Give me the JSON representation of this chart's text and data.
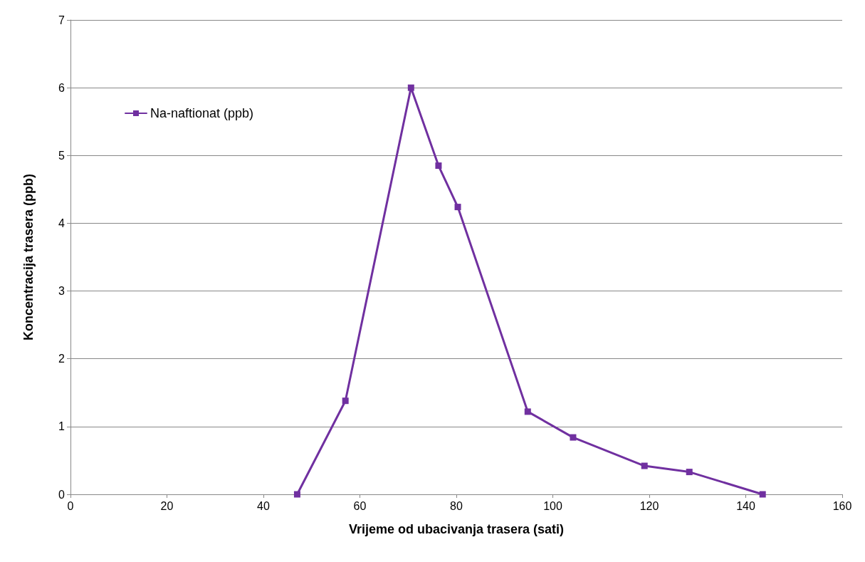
{
  "chart_data": {
    "type": "line",
    "xlabel": "Vrijeme od ubacivanja trasera (sati)",
    "ylabel": "Koncentracija trasera (ppb)",
    "series": [
      {
        "name": "Na-naftionat (ppb)",
        "color": "#7030a0",
        "x": [
          47,
          57,
          70.6,
          76.3,
          80.3,
          94.8,
          104.2,
          119,
          128.3,
          143.5
        ],
        "values": [
          0,
          1.38,
          6,
          4.85,
          4.24,
          1.22,
          0.84,
          0.42,
          0.33,
          0
        ]
      }
    ],
    "xlim": [
      0,
      160
    ],
    "xticks": [
      0,
      20,
      40,
      60,
      80,
      100,
      120,
      140,
      160
    ],
    "ylim": [
      0,
      7
    ],
    "yticks": [
      0,
      1,
      2,
      3,
      4,
      5,
      6,
      7
    ],
    "grid": "y",
    "legend": "top left",
    "marker": "square",
    "line_style": "solid"
  }
}
